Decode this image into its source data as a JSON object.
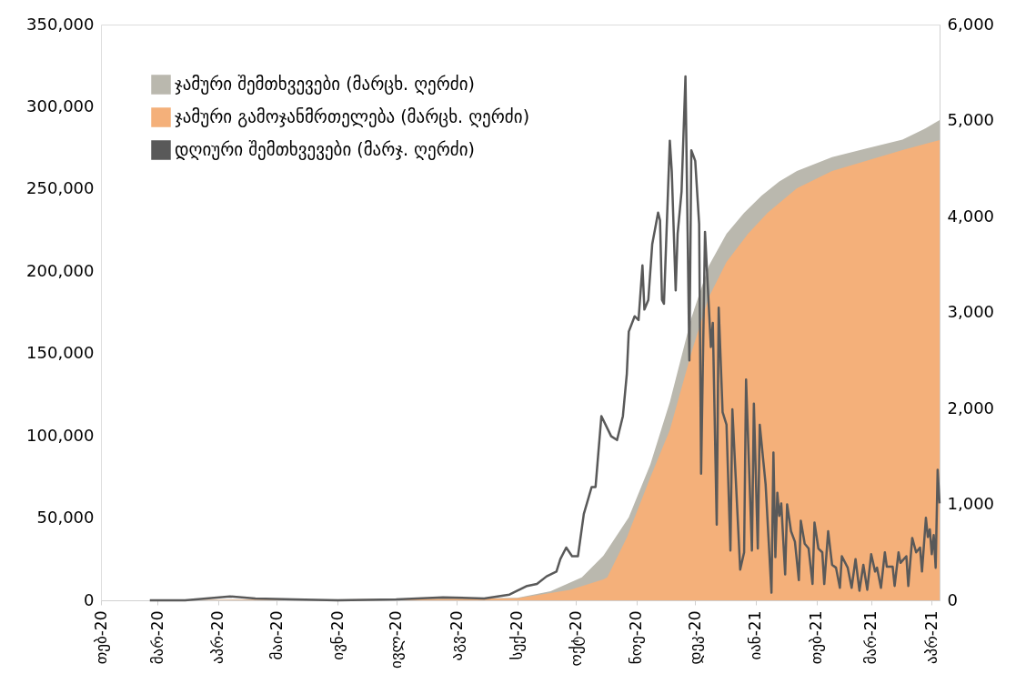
{
  "chart_data": {
    "type": "area",
    "legend": "top left",
    "grid": false,
    "xlim": [
      "2020-02-01",
      "2021-04-05"
    ],
    "xticks": [
      {
        "value": "2020-02-01",
        "label": "თებ-20"
      },
      {
        "value": "2020-03-01",
        "label": "მარ-20"
      },
      {
        "value": "2020-04-01",
        "label": "აპრ-20"
      },
      {
        "value": "2020-05-01",
        "label": "მაი-20"
      },
      {
        "value": "2020-06-01",
        "label": "ივნ-20"
      },
      {
        "value": "2020-07-01",
        "label": "ივლ-20"
      },
      {
        "value": "2020-08-01",
        "label": "აგვ-20"
      },
      {
        "value": "2020-09-01",
        "label": "სექ-20"
      },
      {
        "value": "2020-10-01",
        "label": "ოქტ-20"
      },
      {
        "value": "2020-11-01",
        "label": "ნოე-20"
      },
      {
        "value": "2020-12-01",
        "label": "დეკ-20"
      },
      {
        "value": "2021-01-01",
        "label": "იან-21"
      },
      {
        "value": "2021-02-01",
        "label": "თებ-21"
      },
      {
        "value": "2021-03-01",
        "label": "მარ-21"
      },
      {
        "value": "2021-04-01",
        "label": "აპრ-21"
      }
    ],
    "ylim": [
      0,
      350000
    ],
    "yticks": [
      0,
      {
        "value": 50000,
        "label": "50,000"
      },
      {
        "value": 100000,
        "label": "100,000"
      },
      {
        "value": 150000,
        "label": "150,000"
      },
      {
        "value": 200000,
        "label": "200,000"
      },
      {
        "value": 250000,
        "label": "250,000"
      },
      {
        "value": 300000,
        "label": "300,000"
      },
      {
        "value": 350000,
        "label": "350,000"
      }
    ],
    "y2lim": [
      0,
      6000
    ],
    "y2ticks": [
      0,
      {
        "value": 1000,
        "label": "1,000"
      },
      {
        "value": 2000,
        "label": "2,000"
      },
      {
        "value": 3000,
        "label": "3,000"
      },
      {
        "value": 4000,
        "label": "4,000"
      },
      {
        "value": 5000,
        "label": "5,000"
      },
      {
        "value": 6000,
        "label": "6,000"
      }
    ],
    "series": [
      {
        "name": "ჯამური შემთხვევები (მარცხ. ღერძი)",
        "type": "area",
        "color": "#bab8ae",
        "x": [
          "2020-02-26",
          "2020-08-01",
          "2020-09-01",
          "2020-09-18",
          "2020-10-04",
          "2020-10-15",
          "2020-10-28",
          "2020-11-08",
          "2020-11-18",
          "2020-11-29",
          "2020-12-08",
          "2020-12-17",
          "2020-12-26",
          "2021-01-04",
          "2021-01-13",
          "2021-01-22",
          "2021-02-09",
          "2021-02-27",
          "2021-03-17",
          "2021-03-28",
          "2021-04-05"
        ],
        "values": [
          0,
          1100,
          1500,
          5500,
          14000,
          27100,
          50400,
          82500,
          120500,
          171600,
          203500,
          222800,
          235500,
          246000,
          254600,
          261000,
          269400,
          274800,
          280000,
          286400,
          292000
        ]
      },
      {
        "name": "ჯამური გამოჯანმრთელება (მარცხ. ღერძი)",
        "type": "area",
        "color": "#f4b07a",
        "x": [
          "2020-02-26",
          "2020-08-01",
          "2020-09-01",
          "2020-09-28",
          "2020-10-15",
          "2020-10-17",
          "2020-10-27",
          "2020-11-08",
          "2020-11-18",
          "2020-11-29",
          "2020-12-08",
          "2020-12-17",
          "2020-12-28",
          "2021-01-07",
          "2021-01-22",
          "2021-02-09",
          "2021-02-27",
          "2021-03-17",
          "2021-04-05"
        ],
        "values": [
          0,
          800,
          1300,
          6400,
          12700,
          14000,
          38100,
          74600,
          103600,
          150400,
          184400,
          205700,
          222800,
          235500,
          250500,
          261000,
          267300,
          273700,
          279800
        ]
      },
      {
        "name": "დღიური შემთხვევები (მარჯ. ღერძი)",
        "type": "line",
        "axis": "y2",
        "color": "#595959",
        "x": [
          "2020-02-26",
          "2020-03-15",
          "2020-04-07",
          "2020-04-20",
          "2020-05-10",
          "2020-06-01",
          "2020-07-01",
          "2020-07-25",
          "2020-08-15",
          "2020-08-28",
          "2020-09-01",
          "2020-09-02",
          "2020-09-06",
          "2020-09-11",
          "2020-09-16",
          "2020-09-21",
          "2020-09-23",
          "2020-09-26",
          "2020-09-29",
          "2020-10-02",
          "2020-10-05",
          "2020-10-09",
          "2020-10-11",
          "2020-10-14",
          "2020-10-19",
          "2020-10-22",
          "2020-10-25",
          "2020-10-27",
          "2020-10-28",
          "2020-10-31",
          "2020-11-02",
          "2020-11-04",
          "2020-11-05",
          "2020-11-07",
          "2020-11-09",
          "2020-11-12",
          "2020-11-13",
          "2020-11-14",
          "2020-11-15",
          "2020-11-18",
          "2020-11-19",
          "2020-11-21",
          "2020-11-22",
          "2020-11-24",
          "2020-11-26",
          "2020-11-28",
          "2020-11-29",
          "2020-12-01",
          "2020-12-03",
          "2020-12-04",
          "2020-12-06",
          "2020-12-09",
          "2020-12-10",
          "2020-12-12",
          "2020-12-13",
          "2020-12-15",
          "2020-12-17",
          "2020-12-19",
          "2020-12-20",
          "2020-12-24",
          "2020-12-26",
          "2020-12-27",
          "2020-12-30",
          "2020-12-31",
          "2021-01-02",
          "2021-01-03",
          "2021-01-06",
          "2021-01-09",
          "2021-01-10",
          "2021-01-11",
          "2021-01-12",
          "2021-01-13",
          "2021-01-14",
          "2021-01-16",
          "2021-01-17",
          "2021-01-19",
          "2021-01-21",
          "2021-01-23",
          "2021-01-24",
          "2021-01-26",
          "2021-01-28",
          "2021-01-30",
          "2021-01-31",
          "2021-02-02",
          "2021-02-04",
          "2021-02-05",
          "2021-02-07",
          "2021-02-09",
          "2021-02-11",
          "2021-02-13",
          "2021-02-14",
          "2021-02-17",
          "2021-02-19",
          "2021-02-21",
          "2021-02-23",
          "2021-02-25",
          "2021-02-27",
          "2021-03-01",
          "2021-03-03",
          "2021-03-04",
          "2021-03-06",
          "2021-03-08",
          "2021-03-09",
          "2021-03-12",
          "2021-03-13",
          "2021-03-15",
          "2021-03-16",
          "2021-03-19",
          "2021-03-20",
          "2021-03-22",
          "2021-03-24",
          "2021-03-26",
          "2021-03-27",
          "2021-03-29",
          "2021-03-30",
          "2021-03-31",
          "2021-04-01",
          "2021-04-02",
          "2021-04-03",
          "2021-04-04",
          "2021-04-05"
        ],
        "values": [
          0,
          0,
          40,
          20,
          10,
          0,
          10,
          30,
          20,
          60,
          100,
          110,
          150,
          170,
          250,
          300,
          430,
          550,
          460,
          460,
          900,
          1180,
          1180,
          1920,
          1710,
          1670,
          1920,
          2360,
          2800,
          2960,
          2920,
          3490,
          3030,
          3130,
          3710,
          4040,
          3960,
          3130,
          3090,
          4790,
          4470,
          3230,
          3820,
          4260,
          5460,
          2500,
          4690,
          4580,
          3920,
          1320,
          3840,
          2640,
          2890,
          790,
          3050,
          1960,
          1830,
          520,
          1990,
          320,
          500,
          2300,
          520,
          2050,
          540,
          1830,
          1210,
          80,
          1540,
          450,
          1120,
          880,
          1010,
          270,
          1000,
          720,
          610,
          210,
          830,
          590,
          540,
          170,
          810,
          540,
          500,
          170,
          720,
          370,
          340,
          130,
          460,
          340,
          130,
          430,
          100,
          370,
          110,
          480,
          300,
          340,
          130,
          500,
          350,
          350,
          150,
          500,
          390,
          460,
          150,
          650,
          500,
          550,
          300,
          860,
          660,
          740,
          480,
          680,
          340,
          1360,
          1010
        ]
      }
    ]
  }
}
